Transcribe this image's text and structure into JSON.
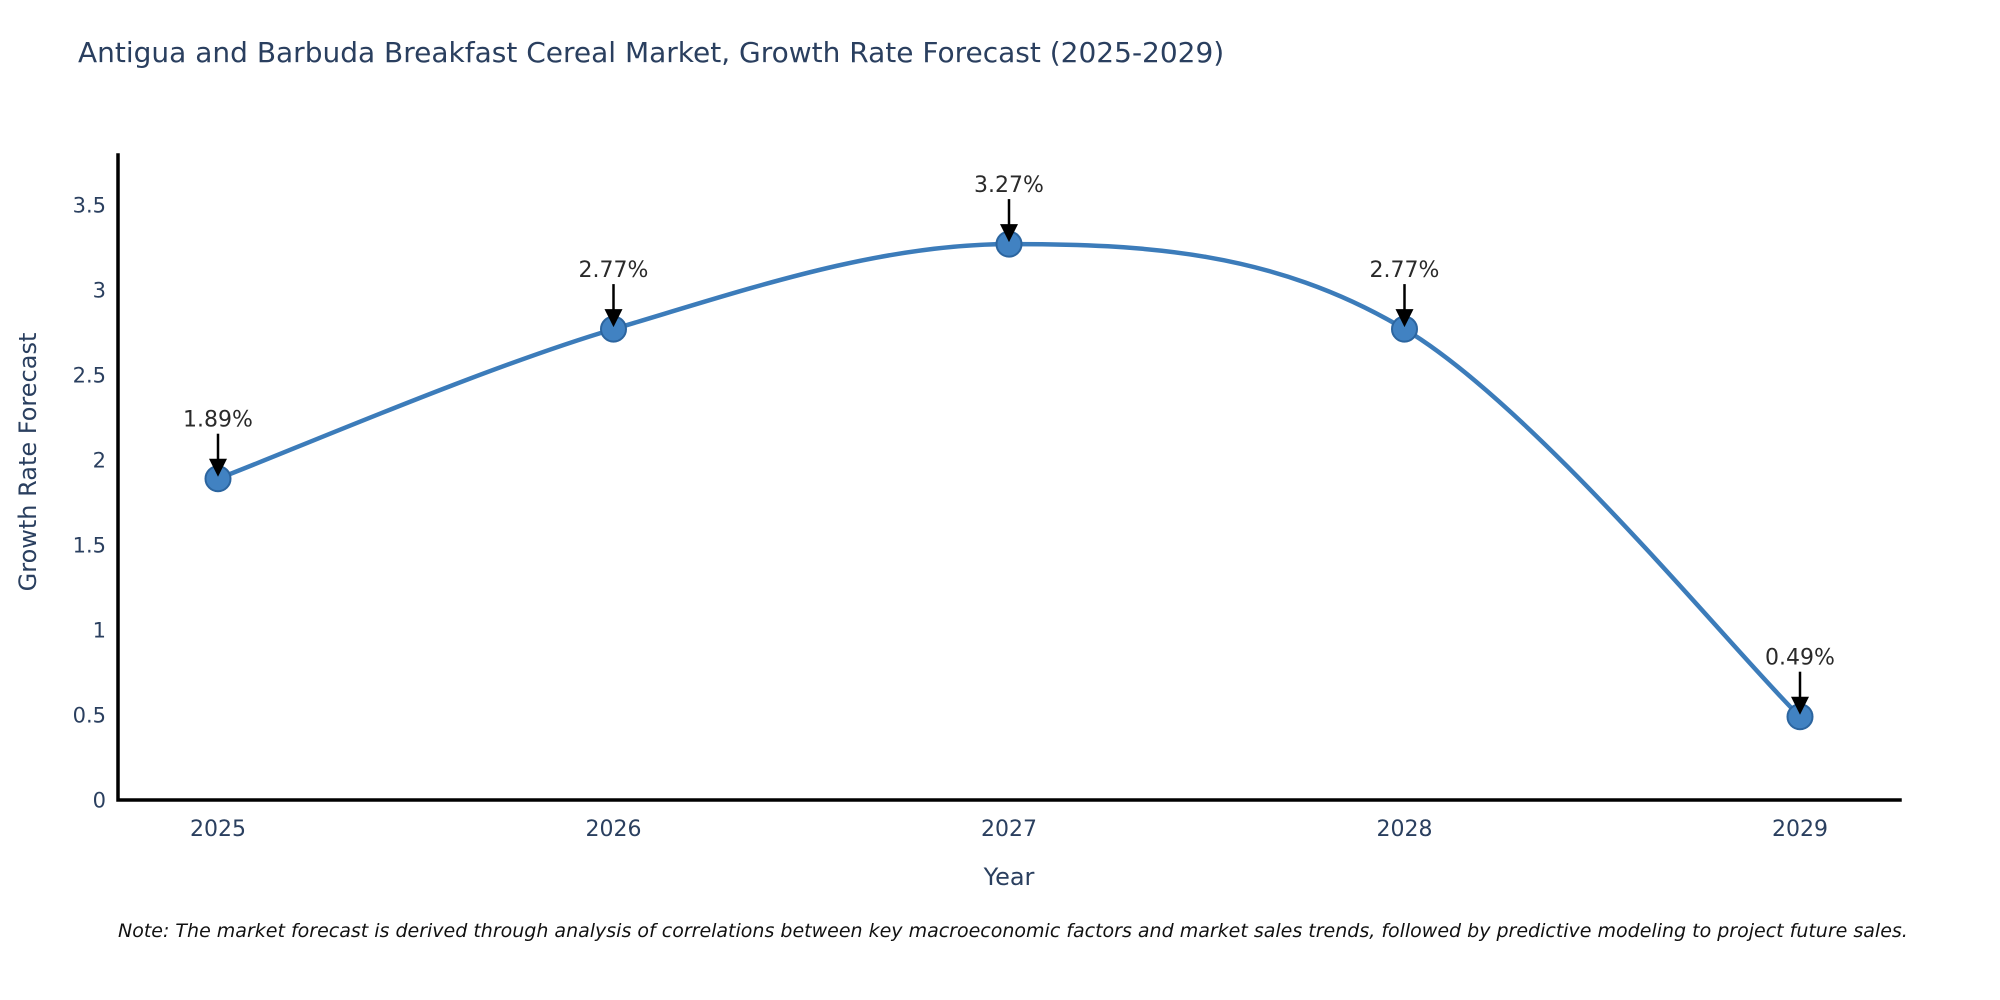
{
  "chart_data": {
    "type": "line",
    "title": "Antigua and Barbuda Breakfast Cereal Market, Growth Rate Forecast (2025-2029)",
    "xlabel": "Year",
    "ylabel": "Growth Rate Forecast",
    "x": [
      "2025",
      "2026",
      "2027",
      "2028",
      "2029"
    ],
    "values": [
      1.89,
      2.77,
      3.27,
      2.77,
      0.49
    ],
    "point_labels": [
      "1.89%",
      "2.77%",
      "3.27%",
      "2.77%",
      "0.49%"
    ],
    "yticks": [
      0,
      0.5,
      1,
      1.5,
      2,
      2.5,
      3,
      3.5
    ],
    "ylim": [
      0,
      3.775
    ],
    "grid": false,
    "legend": "none",
    "line_color": "#3c7cba",
    "marker_color": "#4182c2",
    "marker_edge_color": "#2c659f",
    "axis_color": "#000000",
    "tick_label_color": "#2a3f5f",
    "annotation_text_color": "#2a2a2a",
    "annotation_arrow_color": "#000000"
  },
  "note": "Note: The market forecast is derived through analysis of correlations between key macroeconomic factors and market sales trends, followed by predictive modeling to project future sales."
}
